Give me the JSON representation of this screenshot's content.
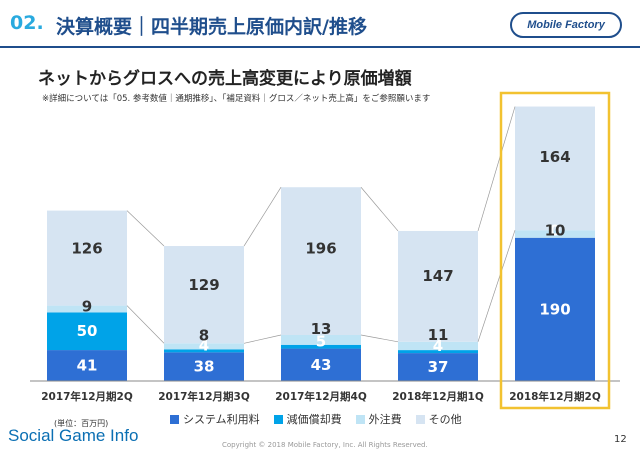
{
  "header": {
    "number": "02.",
    "title": "決算概要｜四半期売上原価内訳/推移",
    "logo_text": "Mobile Factory"
  },
  "subtitle": "ネットからグロスへの売上高変更により原価増額",
  "note": "※詳細については「05. 参考数値｜通期推移」、「補足資料｜グロス／ネット売上高」をご参照願います",
  "footer": {
    "unit": "(単位：百万円)",
    "watermark": "Social Game Info",
    "copyright": "Copyright © 2018 Mobile Factory, Inc. All Rights Reserved.",
    "page": "12"
  },
  "colors": {
    "system": "#2e6fd4",
    "depreciation": "#00a3e8",
    "outsourcing": "#bfe4f5",
    "other": "#d6e4f2",
    "highlight": "#f2c230",
    "title_accent": "#29aadf",
    "title_main": "#1f4e8c"
  },
  "chart_data": {
    "type": "bar",
    "stacked": true,
    "categories": [
      "2017年12月期2Q",
      "2017年12月期3Q",
      "2017年12月期4Q",
      "2018年12月期1Q",
      "2018年12月期2Q"
    ],
    "series": [
      {
        "name": "システム利用料",
        "values": [
          41,
          38,
          43,
          37,
          190
        ]
      },
      {
        "name": "減価償却費",
        "values": [
          50,
          4,
          5,
          4,
          0
        ]
      },
      {
        "name": "外注費",
        "values": [
          9,
          8,
          13,
          11,
          10
        ]
      },
      {
        "name": "その他",
        "values": [
          126,
          129,
          196,
          147,
          164
        ]
      }
    ],
    "highlight_category": "2018年12月期2Q",
    "legend_position": "bottom"
  }
}
